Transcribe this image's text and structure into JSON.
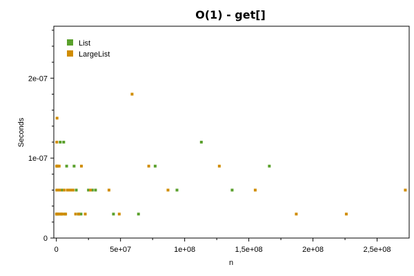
{
  "chart_data": {
    "type": "scatter",
    "title": "O(1) - get[]",
    "xlabel": "n",
    "ylabel": "Seconds",
    "xlim": [
      -2000000,
      275000000
    ],
    "ylim": [
      0,
      2.65e-07
    ],
    "x_ticks": [
      {
        "value": 0,
        "label": "0"
      },
      {
        "value": 50000000,
        "label": "5e+07"
      },
      {
        "value": 100000000,
        "label": "1e+08"
      },
      {
        "value": 150000000,
        "label": "1,5e+08"
      },
      {
        "value": 200000000,
        "label": "2e+08"
      },
      {
        "value": 250000000,
        "label": "2,5e+08"
      }
    ],
    "y_ticks": [
      {
        "value": 0,
        "label": "0"
      },
      {
        "value": 1e-07,
        "label": "1e-07"
      },
      {
        "value": 2e-07,
        "label": "2e-07"
      }
    ],
    "grid": false,
    "legend_position": "top-left",
    "series": [
      {
        "name": "List",
        "color": "#5aa02c",
        "points": [
          [
            100000,
            3e-08
          ],
          [
            300000,
            6e-08
          ],
          [
            500000,
            9e-08
          ],
          [
            800000,
            3e-08
          ],
          [
            1200000,
            6e-08
          ],
          [
            1700000,
            3e-08
          ],
          [
            2300000,
            6e-08
          ],
          [
            3000000,
            1.2e-07
          ],
          [
            3800000,
            3e-08
          ],
          [
            4700000,
            6e-08
          ],
          [
            5700000,
            1.2e-07
          ],
          [
            6800000,
            3e-08
          ],
          [
            8000000,
            9e-08
          ],
          [
            9300000,
            6e-08
          ],
          [
            10700000,
            6e-08
          ],
          [
            12200000,
            6e-08
          ],
          [
            13800000,
            9e-08
          ],
          [
            15500000,
            6e-08
          ],
          [
            17300000,
            3e-08
          ],
          [
            19200000,
            3e-08
          ],
          [
            25000000,
            6e-08
          ],
          [
            28000000,
            6e-08
          ],
          [
            30500000,
            6e-08
          ],
          [
            44500000,
            3e-08
          ],
          [
            64000000,
            3e-08
          ],
          [
            77000000,
            9e-08
          ],
          [
            94000000,
            6e-08
          ],
          [
            113000000,
            1.2e-07
          ],
          [
            137000000,
            6e-08
          ],
          [
            166000000,
            9e-08
          ]
        ]
      },
      {
        "name": "LargeList",
        "color": "#d08c00",
        "points": [
          [
            100000,
            3e-08
          ],
          [
            200000,
            9e-08
          ],
          [
            300000,
            1.2e-07
          ],
          [
            400000,
            6e-08
          ],
          [
            500000,
            1.5e-07
          ],
          [
            700000,
            3e-08
          ],
          [
            900000,
            6e-08
          ],
          [
            1100000,
            9e-08
          ],
          [
            1400000,
            3e-08
          ],
          [
            1800000,
            6e-08
          ],
          [
            2200000,
            9e-08
          ],
          [
            2700000,
            6e-08
          ],
          [
            3300000,
            3e-08
          ],
          [
            4000000,
            3e-08
          ],
          [
            5000000,
            3e-08
          ],
          [
            6000000,
            6e-08
          ],
          [
            7200000,
            3e-08
          ],
          [
            8500000,
            6e-08
          ],
          [
            10000000,
            6e-08
          ],
          [
            11500000,
            6e-08
          ],
          [
            13000000,
            6e-08
          ],
          [
            15000000,
            3e-08
          ],
          [
            17500000,
            3e-08
          ],
          [
            19500000,
            9e-08
          ],
          [
            22500000,
            3e-08
          ],
          [
            26500000,
            6e-08
          ],
          [
            41000000,
            6e-08
          ],
          [
            49000000,
            3e-08
          ],
          [
            59000000,
            1.8e-07
          ],
          [
            72000000,
            9e-08
          ],
          [
            87000000,
            6e-08
          ],
          [
            127000000,
            9e-08
          ],
          [
            155000000,
            6e-08
          ],
          [
            187000000,
            3e-08
          ],
          [
            226000000,
            3e-08
          ],
          [
            272000000,
            6e-08
          ]
        ]
      }
    ]
  }
}
